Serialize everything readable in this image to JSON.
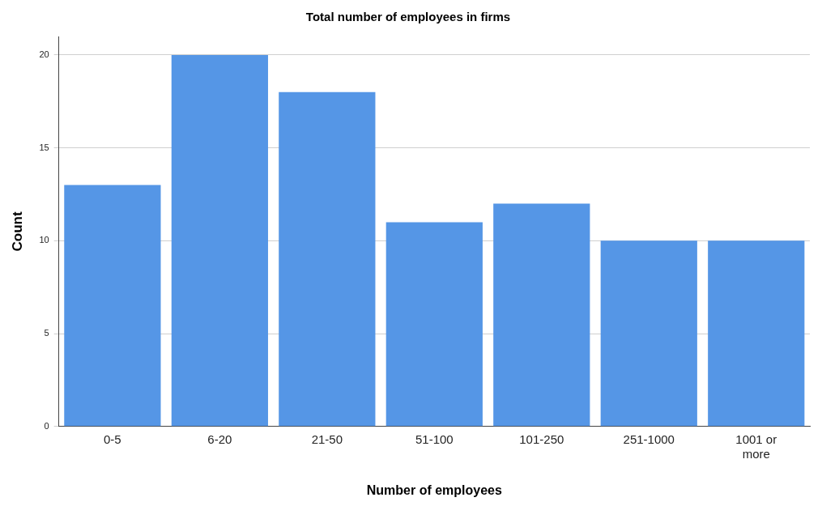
{
  "chart_data": {
    "type": "bar",
    "title": "Total number of employees in firms",
    "xlabel": "Number of employees",
    "ylabel": "Count",
    "categories": [
      "0-5",
      "6-20",
      "21-50",
      "51-100",
      "101-250",
      "251-1000",
      "1001 or more"
    ],
    "values": [
      13,
      20,
      18,
      11,
      12,
      10,
      10
    ],
    "color": "#5596e6",
    "ylim": [
      0,
      21
    ],
    "yticks": [
      0,
      5,
      10,
      15,
      20
    ],
    "grid": "y"
  }
}
